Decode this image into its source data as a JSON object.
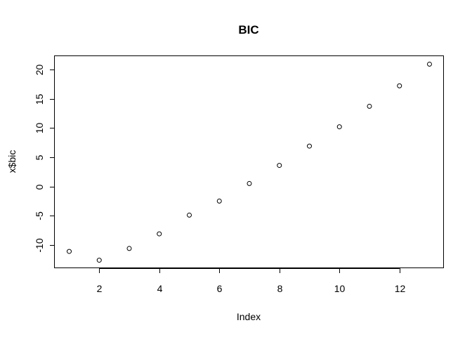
{
  "chart_data": {
    "type": "scatter",
    "title": "BIC",
    "xlabel": "Index",
    "ylabel": "x$bic",
    "x": [
      1,
      2,
      3,
      4,
      5,
      6,
      7,
      8,
      9,
      10,
      11,
      12,
      13
    ],
    "y": [
      -11.1,
      -12.6,
      -10.6,
      -8.1,
      -4.9,
      -2.5,
      0.5,
      3.6,
      6.9,
      10.2,
      13.7,
      17.2,
      20.9
    ],
    "xlim": [
      0.52,
      13.48
    ],
    "ylim": [
      -13.97,
      22.27
    ],
    "xticks": [
      2,
      4,
      6,
      8,
      10,
      12
    ],
    "yticks": [
      -10,
      -5,
      0,
      5,
      10,
      15,
      20
    ],
    "grid": false,
    "legend": "none"
  }
}
